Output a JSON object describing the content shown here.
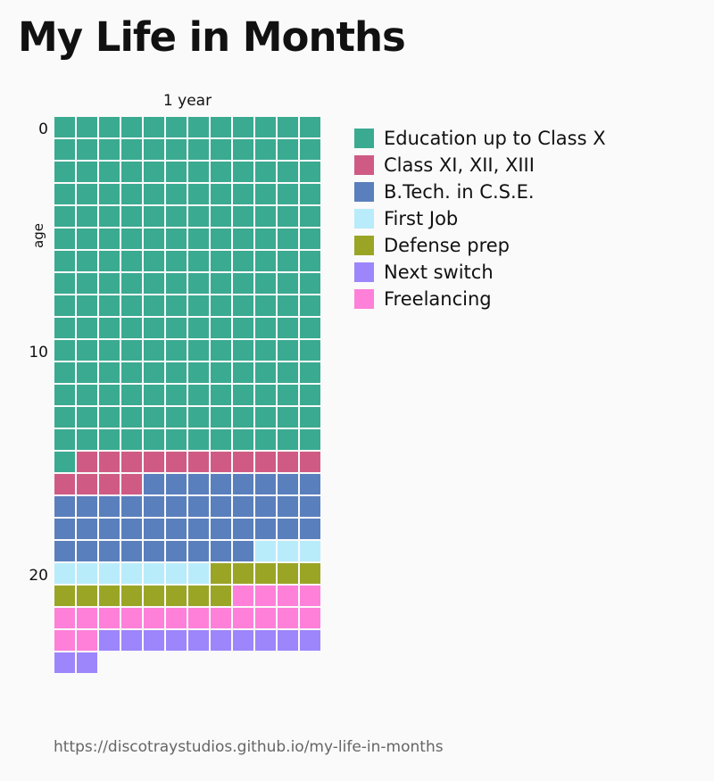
{
  "chart_data": {
    "type": "waffle",
    "title": "My Life in Months",
    "column_axis_label": "1 year",
    "row_axis_label": "age",
    "columns_per_row": 12,
    "age_ticks": [
      "0",
      "10",
      "20"
    ],
    "source_url": "https://discotraystudios.github.io/my-life-in-months",
    "categories": [
      {
        "name": "Education up to Class X",
        "months": 181,
        "color": "#3aaa91"
      },
      {
        "name": "Class XI, XII, XIII",
        "months": 15,
        "color": "#cf5b85"
      },
      {
        "name": "B.Tech. in C.S.E.",
        "months": 41,
        "color": "#5a7fbd"
      },
      {
        "name": "First Job",
        "months": 10,
        "color": "#b8ecfb"
      },
      {
        "name": "Defense prep",
        "months": 13,
        "color": "#9aa526"
      },
      {
        "name": "Freelancing",
        "months": 18,
        "color": "#fe80d9"
      },
      {
        "name": "Next switch",
        "months": 12,
        "color": "#9d85fc"
      }
    ]
  }
}
